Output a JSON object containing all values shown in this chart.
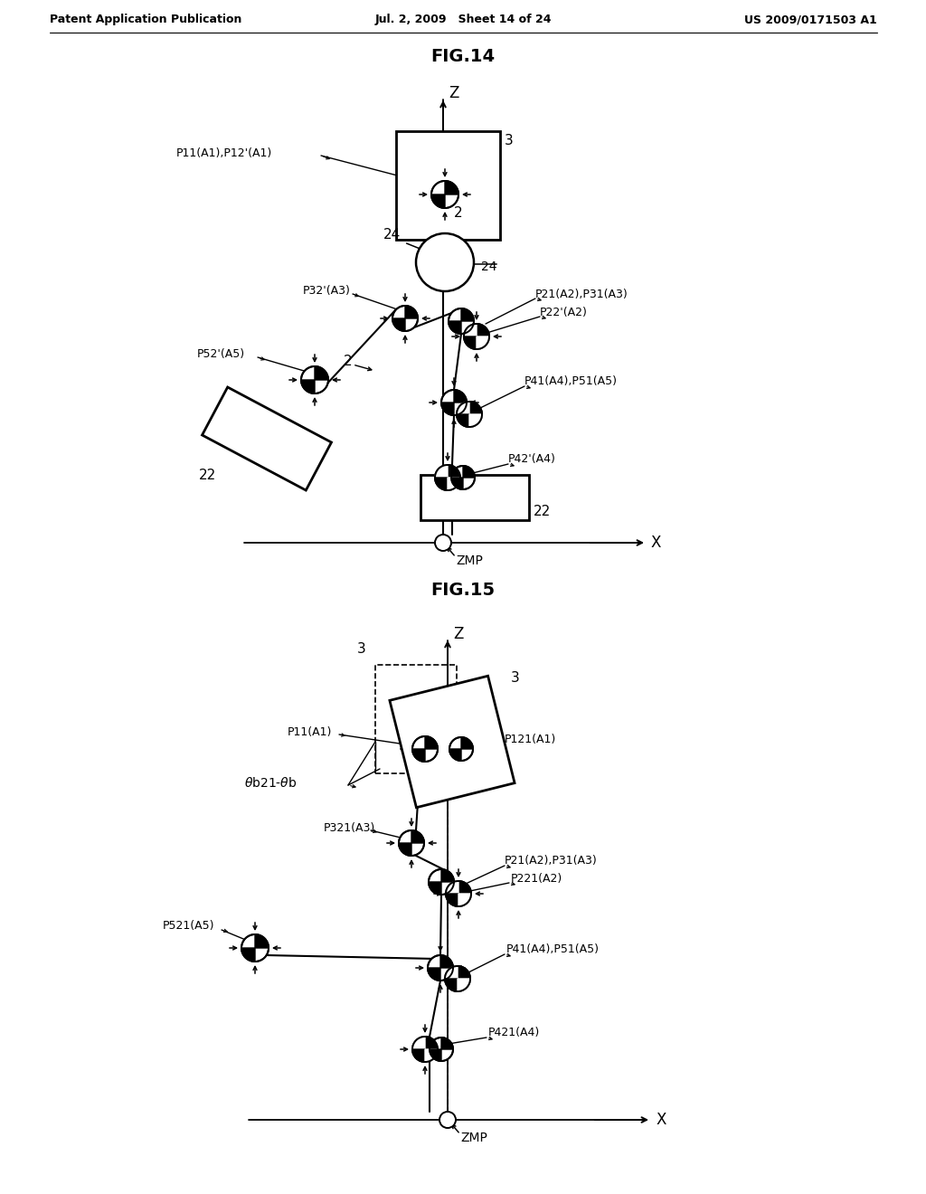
{
  "fig_title": "FIG.14",
  "fig15_title": "FIG.15",
  "header_left": "Patent Application Publication",
  "header_mid": "Jul. 2, 2009   Sheet 14 of 24",
  "header_right": "US 2009/0171503 A1",
  "bg_color": "#ffffff",
  "line_color": "#000000"
}
